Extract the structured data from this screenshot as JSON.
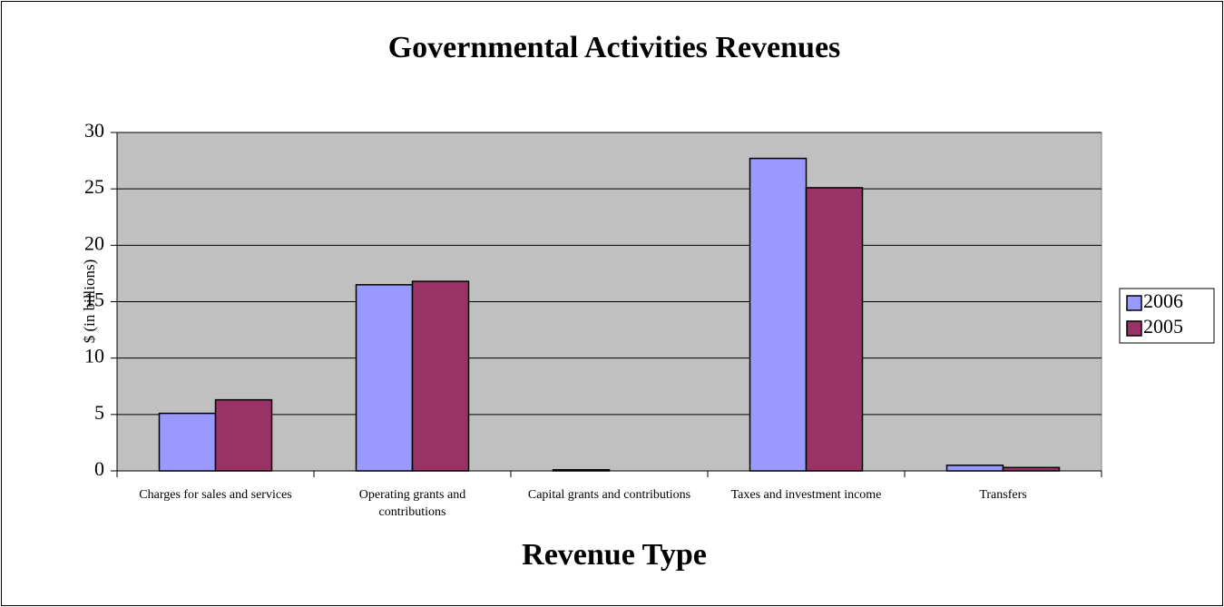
{
  "chart_data": {
    "type": "bar",
    "title": "Governmental Activities Revenues",
    "x_label": "Revenue Type",
    "y_label": "$ (in billions)",
    "categories": [
      "Charges for sales and services",
      "Operating grants and contributions",
      "Capital grants and contributions",
      "Taxes and investment income",
      "Transfers"
    ],
    "series": [
      {
        "name": "2006",
        "color": "#9999ff",
        "values": [
          5.1,
          16.5,
          0.1,
          27.7,
          0.5
        ]
      },
      {
        "name": "2005",
        "color": "#993366",
        "values": [
          6.3,
          16.8,
          0,
          25.1,
          0.3
        ]
      }
    ],
    "ylim": [
      0,
      30
    ],
    "yticks": [
      0,
      5,
      10,
      15,
      20,
      25,
      30
    ],
    "grid": true,
    "legend": "right"
  }
}
